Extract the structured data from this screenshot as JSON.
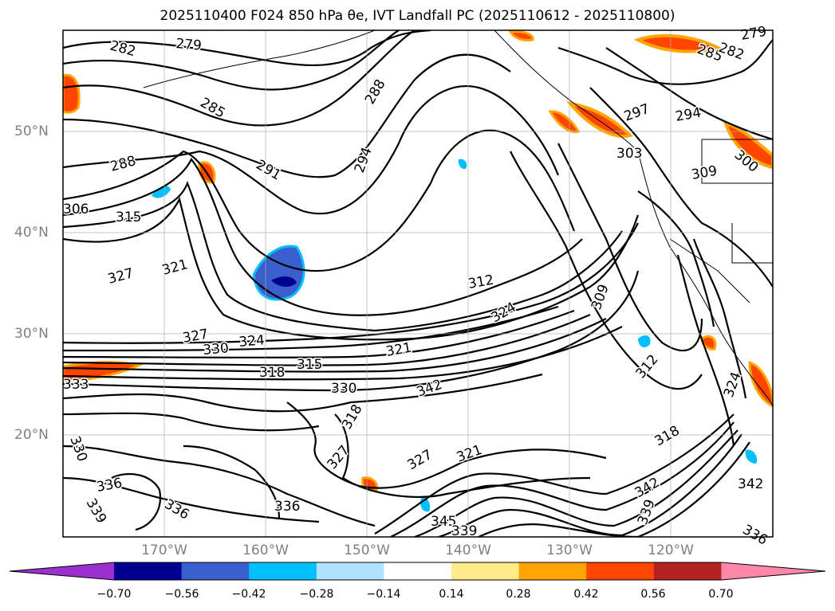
{
  "title": "2025110400 F024 850 hPa θe, IVT Landfall PC (2025110612 - 2025110800)",
  "lat_labels": [
    "50°N",
    "40°N",
    "30°N",
    "20°N"
  ],
  "lon_labels": [
    "170°W",
    "160°W",
    "150°W",
    "140°W",
    "130°W",
    "120°W"
  ],
  "colorbar": {
    "ticks": [
      "−0.70",
      "−0.56",
      "−0.42",
      "−0.28",
      "−0.14",
      "0.14",
      "0.28",
      "0.42",
      "0.56",
      "0.70"
    ],
    "colors": [
      "#9b30d0",
      "#000090",
      "#3a5fcd",
      "#00bfff",
      "#b0e2ff",
      "#ffffff",
      "#ffeb8a",
      "#ffa500",
      "#ff4500",
      "#b22222",
      "#ff88aa"
    ]
  },
  "contour_labels": [
    "282",
    "279",
    "285",
    "288",
    "291",
    "294",
    "288",
    "285",
    "282",
    "279",
    "297",
    "294",
    "300",
    "303",
    "309",
    "306",
    "315",
    "327",
    "321",
    "312",
    "324",
    "309",
    "327",
    "330",
    "324",
    "318",
    "315",
    "321",
    "330",
    "333",
    "330",
    "336",
    "339",
    "336",
    "336",
    "318",
    "327",
    "327",
    "321",
    "342",
    "345",
    "339",
    "312",
    "324",
    "318",
    "342",
    "339",
    "342",
    "336"
  ]
}
